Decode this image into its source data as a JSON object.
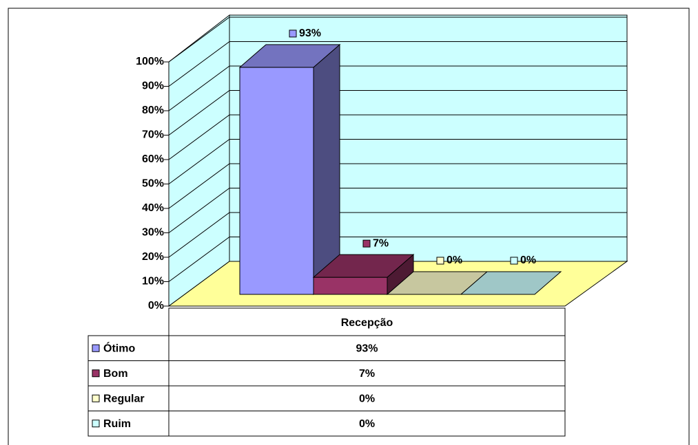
{
  "chart_data": {
    "type": "bar3d",
    "categories": [
      "Recepção"
    ],
    "series": [
      {
        "name": "Ótimo",
        "color": "#9999ff",
        "values": [
          93
        ],
        "value_labels": [
          "93%"
        ]
      },
      {
        "name": "Bom",
        "color": "#993366",
        "values": [
          7
        ],
        "value_labels": [
          "7%"
        ]
      },
      {
        "name": "Regular",
        "color": "#ffffcc",
        "values": [
          0
        ],
        "value_labels": [
          "0%"
        ]
      },
      {
        "name": "Ruim",
        "color": "#ccffff",
        "values": [
          0
        ],
        "value_labels": [
          "0%"
        ]
      }
    ],
    "ylim": [
      0,
      100
    ],
    "yticks": [
      {
        "value": 0,
        "label": "0%"
      },
      {
        "value": 10,
        "label": "10%"
      },
      {
        "value": 20,
        "label": "20%"
      },
      {
        "value": 30,
        "label": "30%"
      },
      {
        "value": 40,
        "label": "40%"
      },
      {
        "value": 50,
        "label": "50%"
      },
      {
        "value": 60,
        "label": "60%"
      },
      {
        "value": 70,
        "label": "70%"
      },
      {
        "value": 80,
        "label": "80%"
      },
      {
        "value": 90,
        "label": "90%"
      },
      {
        "value": 100,
        "label": "100%"
      }
    ],
    "grid": true
  }
}
